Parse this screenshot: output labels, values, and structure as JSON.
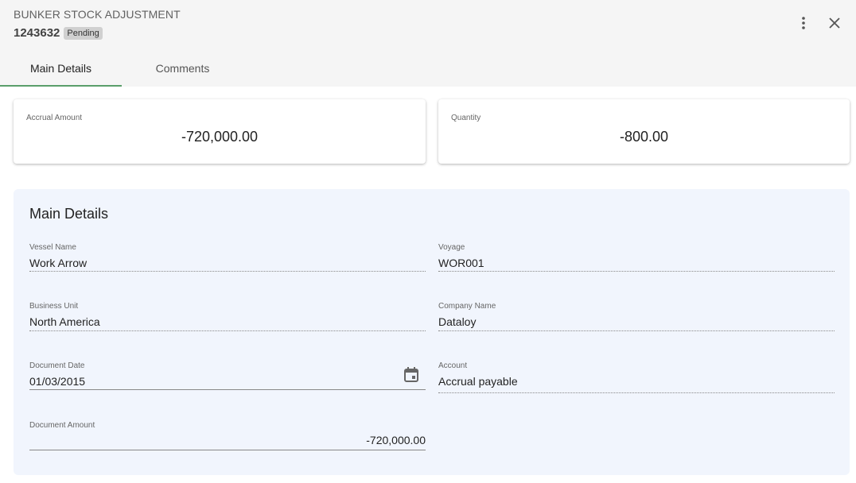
{
  "header": {
    "title": "BUNKER STOCK ADJUSTMENT",
    "record_id": "1243632",
    "status": "Pending"
  },
  "tabs": [
    {
      "label": "Main Details",
      "active": true
    },
    {
      "label": "Comments",
      "active": false
    }
  ],
  "kpis": [
    {
      "label": "Accrual Amount",
      "value": "-720,000.00"
    },
    {
      "label": "Quantity",
      "value": "-800.00"
    }
  ],
  "panel": {
    "title": "Main Details",
    "fields": {
      "vessel_name": {
        "label": "Vessel Name",
        "value": "Work Arrow"
      },
      "voyage": {
        "label": "Voyage",
        "value": "WOR001"
      },
      "business_unit": {
        "label": "Business Unit",
        "value": "North America"
      },
      "company_name": {
        "label": "Company Name",
        "value": "Dataloy"
      },
      "document_date": {
        "label": "Document Date",
        "value": "01/03/2015"
      },
      "account": {
        "label": "Account",
        "value": "Accrual payable"
      },
      "document_amount": {
        "label": "Document Amount",
        "value": "-720,000.00"
      }
    }
  },
  "icons": {
    "menu": "more-vertical-icon",
    "close": "close-icon",
    "calendar": "calendar-icon"
  },
  "colors": {
    "tab_indicator": "#5a9e6a",
    "panel_bg": "#f1f5fd"
  }
}
